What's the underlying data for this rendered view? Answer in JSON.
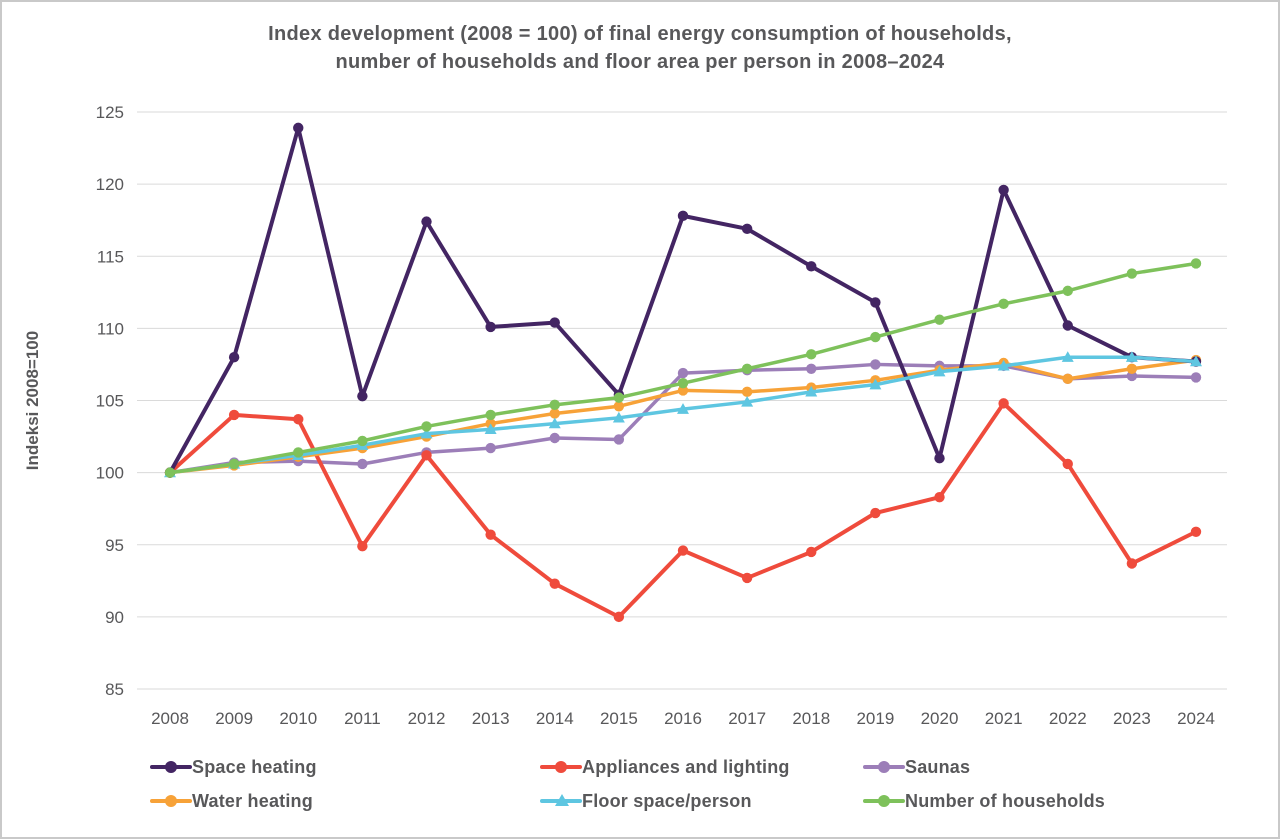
{
  "chart_data": {
    "type": "line",
    "title_line1": "Index development (2008 = 100) of final energy consumption of households,",
    "title_line2": "number of households and floor area per person in 2008–2024",
    "ylabel": "Indeksi 2008=100",
    "x": [
      2008,
      2009,
      2010,
      2011,
      2012,
      2013,
      2014,
      2015,
      2016,
      2017,
      2018,
      2019,
      2020,
      2021,
      2022,
      2023,
      2024
    ],
    "ylim": [
      85,
      125
    ],
    "ytick_step": 5,
    "grid": "horizontal",
    "legend_position": "bottom",
    "series": [
      {
        "name": "Space heating",
        "color": "#432563",
        "marker": "circle",
        "line_width": 4,
        "values": [
          100,
          108.0,
          123.9,
          105.3,
          117.4,
          110.1,
          110.4,
          105.4,
          117.8,
          116.9,
          114.3,
          111.8,
          101.0,
          119.6,
          110.2,
          108.0,
          107.7
        ]
      },
      {
        "name": "Appliances and lighting",
        "color": "#ef4b3c",
        "marker": "circle",
        "line_width": 4,
        "values": [
          100,
          104.0,
          103.7,
          94.9,
          101.2,
          95.7,
          92.3,
          90.0,
          94.6,
          92.7,
          94.5,
          97.2,
          98.3,
          104.8,
          100.6,
          93.7,
          95.9
        ]
      },
      {
        "name": "Saunas",
        "color": "#9c7eb8",
        "marker": "circle",
        "line_width": 3.5,
        "values": [
          100,
          100.7,
          100.8,
          100.6,
          101.4,
          101.7,
          102.4,
          102.3,
          106.9,
          107.1,
          107.2,
          107.5,
          107.4,
          107.4,
          106.5,
          106.7,
          106.6
        ]
      },
      {
        "name": "Water heating",
        "color": "#f7a238",
        "marker": "circle",
        "line_width": 3.5,
        "values": [
          100,
          100.5,
          101.1,
          101.7,
          102.5,
          103.4,
          104.1,
          104.6,
          105.7,
          105.6,
          105.9,
          106.4,
          107.1,
          107.6,
          106.5,
          107.2,
          107.8
        ]
      },
      {
        "name": "Floor space/person",
        "color": "#5ec6e1",
        "marker": "triangle",
        "line_width": 3.5,
        "values": [
          100,
          100.6,
          101.2,
          101.9,
          102.7,
          103.0,
          103.4,
          103.8,
          104.4,
          104.9,
          105.6,
          106.1,
          107.0,
          107.4,
          108.0,
          108.0,
          107.7
        ]
      },
      {
        "name": "Number of households",
        "color": "#7ec15b",
        "marker": "circle",
        "line_width": 3.5,
        "values": [
          100,
          100.6,
          101.4,
          102.2,
          103.2,
          104.0,
          104.7,
          105.2,
          106.2,
          107.2,
          108.2,
          109.4,
          110.6,
          111.7,
          112.6,
          113.8,
          114.5
        ]
      }
    ],
    "draw_order": [
      2,
      1,
      3,
      0,
      4,
      5
    ],
    "legend_rows": [
      [
        0,
        1,
        2
      ],
      [
        3,
        4,
        5
      ]
    ],
    "colors": {
      "grid": "#dadada",
      "axis_text": "#58585a",
      "title_text": "#58585a"
    }
  }
}
